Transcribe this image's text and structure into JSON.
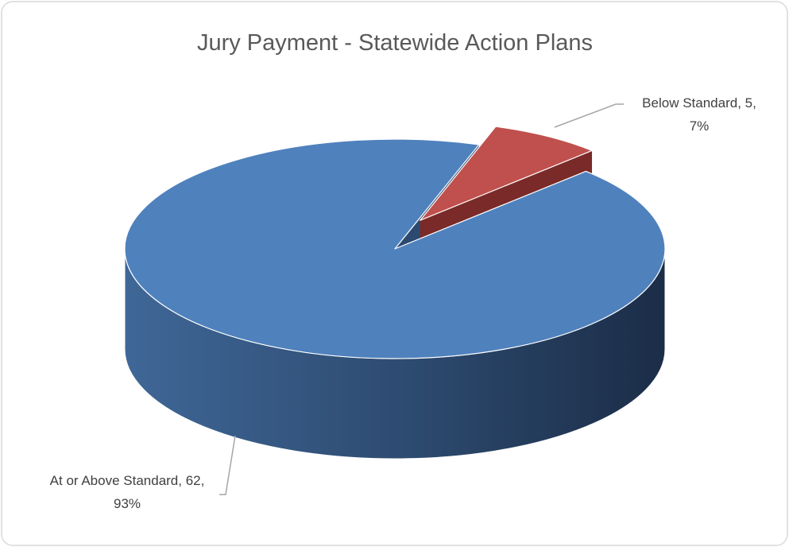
{
  "chart_data": {
    "type": "pie",
    "title": "Jury Payment - Statewide Action Plans",
    "categories": [
      "At or Above Standard",
      "Below Standard"
    ],
    "values": [
      62,
      5
    ],
    "value_labels": [
      "At or Above Standard, 62, 93%",
      "Below Standard, 5, 7%"
    ],
    "colors": [
      "#4f81bd",
      "#c0504d"
    ]
  }
}
